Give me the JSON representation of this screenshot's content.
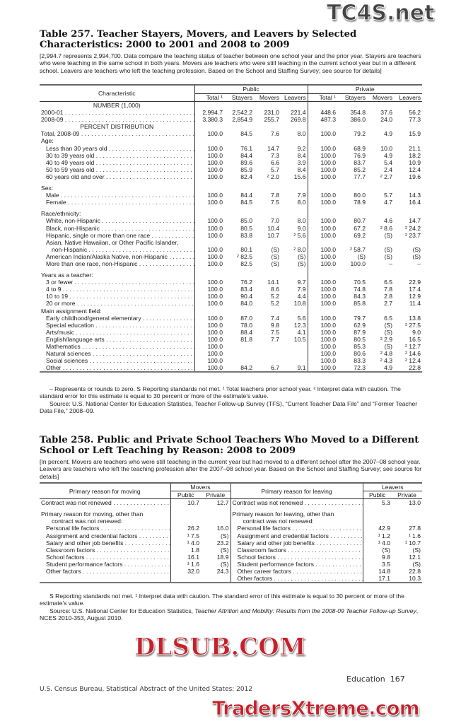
{
  "t257": {
    "title": "Table 257. Teacher Stayers, Movers, and Leavers by Selected Characteristics: 2000 to 2001 and 2008 to 2009",
    "headnote": "[2,994.7 represents 2,994,700. Data compare the teaching status of teacher between one school year and the prior year. Stayers are teachers who were teaching in the same school in both years. Movers are teachers who were still teaching in the current school year but in a different school. Leavers are teachers who left the teaching profession. Based on the School and Staffing Survey; see source for details]",
    "col_characteristic": "Characteristic",
    "group_public": "Public",
    "group_private": "Private",
    "cols": [
      "Total ¹",
      "Stayers",
      "Movers",
      "Leavers",
      "Total ¹",
      "Stayers",
      "Movers",
      "Leavers"
    ],
    "rows": [
      {
        "type": "section",
        "label": "NUMBER (1,000)"
      },
      {
        "type": "data",
        "label": "2000-01",
        "indent": 0,
        "values": [
          "2,994.7",
          "2,542.2",
          "231.0",
          "221.4",
          "448.6",
          "354.8",
          "37.6",
          "56.2"
        ]
      },
      {
        "type": "data",
        "label": "2008-09",
        "indent": 0,
        "values": [
          "3,380.3",
          "2,854.9",
          "255.7",
          "269.8",
          "487.3",
          "386.0",
          "24.0",
          "77.3"
        ]
      },
      {
        "type": "section",
        "label": "PERCENT DISTRIBUTION"
      },
      {
        "type": "data",
        "label": "Total, 2008-09",
        "indent": 0,
        "values": [
          "100.0",
          "84.5",
          "7.6",
          "8.0",
          "100.0",
          "79.2",
          "4.9",
          "15.9"
        ]
      },
      {
        "type": "heading",
        "label": "Age:"
      },
      {
        "type": "data",
        "label": "Less than 30 years old",
        "indent": 1,
        "values": [
          "100.0",
          "76.1",
          "14.7",
          "9.2",
          "100.0",
          "68.9",
          "10.0",
          "21.1"
        ]
      },
      {
        "type": "data",
        "label": "30 to 39 years old",
        "indent": 1,
        "values": [
          "100.0",
          "84.4",
          "7.3",
          "8.4",
          "100.0",
          "76.9",
          "4.9",
          "18.2"
        ]
      },
      {
        "type": "data",
        "label": "40 to 49 years old",
        "indent": 1,
        "values": [
          "100.0",
          "89.6",
          "6.6",
          "3.9",
          "100.0",
          "83.7",
          "5.4",
          "10.9"
        ]
      },
      {
        "type": "data",
        "label": "50 to 59 years old",
        "indent": 1,
        "values": [
          "100.0",
          "85.9",
          "5.7",
          "8.4",
          "100.0",
          "85.2",
          "2.4",
          "12.4"
        ]
      },
      {
        "type": "data",
        "label": "60 years old and over",
        "indent": 1,
        "values": [
          "100.0",
          "82.4",
          "² 2.0",
          "15.6",
          "100.0",
          "77.7",
          "² 2.7",
          "19.6"
        ]
      },
      {
        "type": "gap"
      },
      {
        "type": "heading",
        "label": "Sex:"
      },
      {
        "type": "data",
        "label": "Male",
        "indent": 1,
        "values": [
          "100.0",
          "84.4",
          "7.8",
          "7.9",
          "100.0",
          "80.0",
          "5.7",
          "14.3"
        ]
      },
      {
        "type": "data",
        "label": "Female",
        "indent": 1,
        "values": [
          "100.0",
          "84.5",
          "7.5",
          "8.0",
          "100.0",
          "78.9",
          "4.7",
          "16.4"
        ]
      },
      {
        "type": "gap"
      },
      {
        "type": "heading",
        "label": "Race/ethnicity:"
      },
      {
        "type": "data",
        "label": "White, non-Hispanic",
        "indent": 1,
        "values": [
          "100.0",
          "85.0",
          "7.0",
          "8.0",
          "100.0",
          "80.7",
          "4.6",
          "14.7"
        ]
      },
      {
        "type": "data",
        "label": "Black, non-Hispanic",
        "indent": 1,
        "values": [
          "100.0",
          "80.5",
          "10.4",
          "9.0",
          "100.0",
          "67.2",
          "² 8.6",
          "² 24.2"
        ]
      },
      {
        "type": "data",
        "label": "Hispanic, single or more than one race",
        "indent": 1,
        "values": [
          "100.0",
          "83.8",
          "10.7",
          "² 5.6",
          "100.0",
          "69.2",
          "(S)",
          "² 23.7"
        ]
      },
      {
        "type": "heading",
        "label": "Asian, Native Hawaiian, or Other Pacific Islander,",
        "indent": 1
      },
      {
        "type": "data",
        "label": "non-Hispanic",
        "indent": 2,
        "values": [
          "100.0",
          "80.1",
          "(S)",
          "² 8.0",
          "100.0",
          "² 58.7",
          "(S)",
          "(S)"
        ]
      },
      {
        "type": "data",
        "label": "American Indian/Alaska Native, non-Hispanic",
        "indent": 1,
        "values": [
          "100.0",
          "² 82.5",
          "(S)",
          "(S)",
          "100.0",
          "(S)",
          "(S)",
          "(S)"
        ]
      },
      {
        "type": "data",
        "label": "More than one race, non-Hispanic",
        "indent": 1,
        "values": [
          "100.0",
          "82.5",
          "(S)",
          "(S)",
          "100.0",
          "100.0",
          "–",
          "–"
        ]
      },
      {
        "type": "gap"
      },
      {
        "type": "heading",
        "label": "Years as a teacher:"
      },
      {
        "type": "data",
        "label": "3 or fewer",
        "indent": 1,
        "values": [
          "100.0",
          "76.2",
          "14.1",
          "9.7",
          "100.0",
          "70.5",
          "6.5",
          "22.9"
        ]
      },
      {
        "type": "data",
        "label": "4 to 9",
        "indent": 1,
        "values": [
          "100.0",
          "83.4",
          "8.6",
          "7.9",
          "100.0",
          "74.8",
          "7.8",
          "17.4"
        ]
      },
      {
        "type": "data",
        "label": "10 to 19",
        "indent": 1,
        "values": [
          "100.0",
          "90.4",
          "5.2",
          "4.4",
          "100.0",
          "84.3",
          "2.8",
          "12.9"
        ]
      },
      {
        "type": "data",
        "label": "20 or more",
        "indent": 1,
        "values": [
          "100.0",
          "84.0",
          "5.2",
          "10.8",
          "100.0",
          "85.8",
          "2.7",
          "11.4"
        ]
      },
      {
        "type": "heading",
        "label": "Main assignment field:"
      },
      {
        "type": "data",
        "label": "Early childhood/general elementary",
        "indent": 1,
        "values": [
          "100.0",
          "87.0",
          "7.4",
          "5.6",
          "100.0",
          "79.7",
          "6.5",
          "13.8"
        ]
      },
      {
        "type": "data",
        "label": "Special education",
        "indent": 1,
        "values": [
          "100.0",
          "78.0",
          "9.8",
          "12.3",
          "100.0",
          "62.9",
          "(S)",
          "² 27.5"
        ]
      },
      {
        "type": "data",
        "label": "Arts/music",
        "indent": 1,
        "values": [
          "100.0",
          "88.4",
          "7.5",
          "4.1",
          "100.0",
          "87.9",
          "(S)",
          "9.0"
        ]
      },
      {
        "type": "data",
        "label": "English/language arts",
        "indent": 1,
        "values": [
          "100.0",
          "81.8",
          "7.7",
          "10.5",
          "100.0",
          "80.5",
          "² 2.9",
          "16.5"
        ]
      },
      {
        "type": "data",
        "label": "Mathematics",
        "indent": 1,
        "values": [
          "100.0",
          "",
          "",
          "",
          "100.0",
          "85.3",
          "(S)",
          "² 12.7"
        ]
      },
      {
        "type": "data",
        "label": "Natural sciences",
        "indent": 1,
        "values": [
          "100.0",
          "",
          "",
          "",
          "100.0",
          "80.6",
          "² 4.8",
          "² 14.6"
        ]
      },
      {
        "type": "data",
        "label": "Social sciences",
        "indent": 1,
        "values": [
          "100.0",
          "",
          "",
          "",
          "100.0",
          "83.3",
          "² 4.3",
          "² 12.4"
        ]
      },
      {
        "type": "data",
        "label": "Other",
        "indent": 1,
        "values": [
          "100.0",
          "84.2",
          "6.7",
          "9.1",
          "100.0",
          "72.3",
          "4.9",
          "22.8"
        ]
      }
    ],
    "footnote": "– Represents or rounds to zero. S Reporting standards not met. ¹ Total teachers prior school year. ² Interpret data with caution. The standard error for this estimate is equal to 30 percent or more of the estimate's value.",
    "source": "Source: U.S. National Center for Education Statistics, Teacher Follow-up Survey (TFS), “Current Teacher Data File” and “Former Teacher Data File,” 2008–09."
  },
  "t258": {
    "title": "Table 258. Public and Private School Teachers Who Moved to a Different School or Left Teaching by Reason: 2008 to 2009",
    "headnote": "[In percent. Movers are teachers who were still teaching in the current year but had moved to a different school after the 2007–08 school year. Leavers are teachers who left the teaching profession after the 2007–08 school year. Based on the School and Staffing Survey; see source for details]",
    "col_moving": "Primary reason for moving",
    "group_movers": "Movers",
    "col_leaving": "Primary reason for leaving",
    "group_leavers": "Leavers",
    "sub_public": "Public",
    "sub_private": "Private",
    "rows": [
      {
        "ml": "Contract was not renewed",
        "mi": 0,
        "mp": "10.7",
        "mv": "12.7",
        "ll": "Contract was not renewed",
        "li": 0,
        "lp": "5.3",
        "lv": "13.0"
      },
      {
        "gap": true
      },
      {
        "ml": "Primary reason for moving, other than",
        "mi": 0,
        "hd": true,
        "ll": "Primary reason for leaving, other than",
        "li": 0
      },
      {
        "ml": "contract was not renewed:",
        "mi": 2,
        "hd": true,
        "ll": "contract was not renewed:",
        "li": 2
      },
      {
        "ml": "Personal life factors",
        "mi": 1,
        "mp": "26.2",
        "mv": "16.0",
        "ll": "Personal life factors",
        "li": 1,
        "lp": "42.9",
        "lv": "27.8"
      },
      {
        "ml": "Assignment and credential factors",
        "mi": 1,
        "mp": "¹ 7.5",
        "mv": "(S)",
        "ll": "Assignment and credential factors",
        "li": 1,
        "lp": "¹ 1.2",
        "lv": "¹ 1.6"
      },
      {
        "ml": "Salary and other job benefits",
        "mi": 1,
        "mp": "¹ 4.0",
        "mv": "23.2",
        "ll": "Salary and other job benefits",
        "li": 1,
        "lp": "¹ 4.0",
        "lv": "¹ 10.7"
      },
      {
        "ml": "Classroom factors",
        "mi": 1,
        "mp": "1.8",
        "mv": "(S)",
        "ll": "Classroom factors",
        "li": 1,
        "lp": "(S)",
        "lv": "(S)"
      },
      {
        "ml": "School factors",
        "mi": 1,
        "mp": "16.1",
        "mv": "18.9",
        "ll": "School factors",
        "li": 1,
        "lp": "9.8",
        "lv": "12.1"
      },
      {
        "ml": "Student performance factors",
        "mi": 1,
        "mp": "¹ 1.6",
        "mv": "(S)",
        "ll": "Student performance factors",
        "li": 1,
        "lp": "3.5",
        "lv": "(S)"
      },
      {
        "ml": "Other factors",
        "mi": 1,
        "mp": "32.0",
        "mv": "24.3",
        "ll": "Other career factors",
        "li": 1,
        "lp": "14.8",
        "lv": "22.8"
      },
      {
        "ll": "Other factors",
        "li": 1,
        "lp": "17.1",
        "lv": "10.3"
      }
    ],
    "footnote": "S Reporting standards not met. ¹ Interpret data with caution. The standard error of this estimate is equal to 30 percent or more of the estimate's value.",
    "source_prefix": "Source: U.S. National Center for Education Statistics, ",
    "source_title": "Teacher Attrition and Mobility: Results from the 2008-09 Teacher Follow-up Survey",
    "source_suffix": ", NCES 2010-353, August 2010."
  },
  "page_footer": {
    "left": "U.S. Census Bureau, Statistical Abstract of the United States: 2012",
    "section": "Education",
    "page_number": "167"
  },
  "watermarks": {
    "top": "TC4S.net",
    "middle": "DLSUB.COM",
    "bottom": "TradersXtreme.com"
  },
  "colors": {
    "watermark": "#c8202a",
    "text": "#1a1a1a"
  }
}
